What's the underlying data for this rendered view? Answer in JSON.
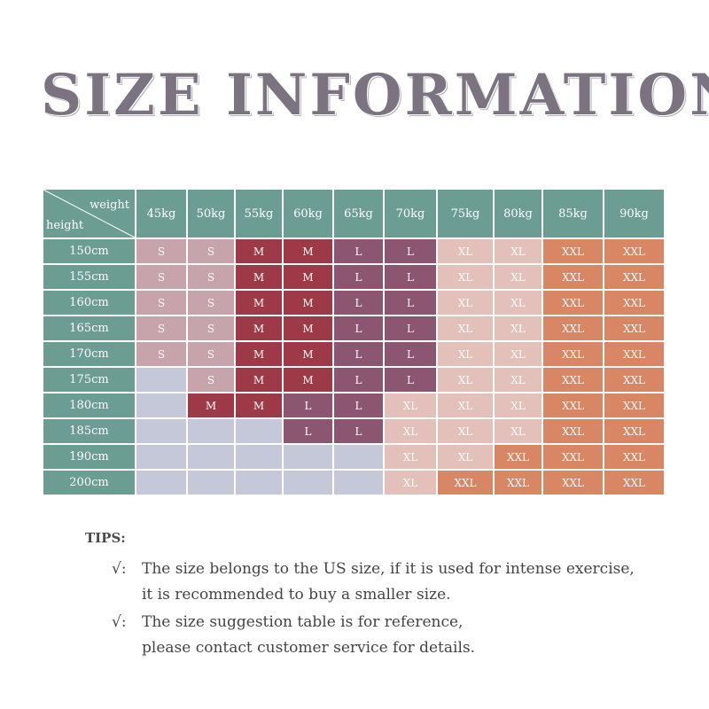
{
  "title": "SIZE INFORMATION",
  "table": {
    "corner_weight": "weight",
    "corner_height": "height",
    "weights": [
      "45kg",
      "50kg",
      "55kg",
      "60kg",
      "65kg",
      "70kg",
      "75kg",
      "80kg",
      "85kg",
      "90kg"
    ],
    "rows": [
      {
        "height": "150cm",
        "sizes": [
          "S",
          "S",
          "M",
          "M",
          "L",
          "L",
          "XL",
          "XL",
          "XXL",
          "XXL"
        ]
      },
      {
        "height": "155cm",
        "sizes": [
          "S",
          "S",
          "M",
          "M",
          "L",
          "L",
          "XL",
          "XL",
          "XXL",
          "XXL"
        ]
      },
      {
        "height": "160cm",
        "sizes": [
          "S",
          "S",
          "M",
          "M",
          "L",
          "L",
          "XL",
          "XL",
          "XXL",
          "XXL"
        ]
      },
      {
        "height": "165cm",
        "sizes": [
          "S",
          "S",
          "M",
          "M",
          "L",
          "L",
          "XL",
          "XL",
          "XXL",
          "XXL"
        ]
      },
      {
        "height": "170cm",
        "sizes": [
          "S",
          "S",
          "M",
          "M",
          "L",
          "L",
          "XL",
          "XL",
          "XXL",
          "XXL"
        ]
      },
      {
        "height": "175cm",
        "sizes": [
          "",
          "S",
          "M",
          "M",
          "L",
          "L",
          "XL",
          "XL",
          "XXL",
          "XXL"
        ]
      },
      {
        "height": "180cm",
        "sizes": [
          "",
          "M",
          "M",
          "L",
          "L",
          "XL",
          "XL",
          "XL",
          "XXL",
          "XXL"
        ]
      },
      {
        "height": "185cm",
        "sizes": [
          "",
          "",
          "",
          "L",
          "L",
          "XL",
          "XL",
          "XL",
          "XXL",
          "XXL"
        ]
      },
      {
        "height": "190cm",
        "sizes": [
          "",
          "",
          "",
          "",
          "",
          "XL",
          "XL",
          "XXL",
          "XXL",
          "XXL"
        ]
      },
      {
        "height": "200cm",
        "sizes": [
          "",
          "",
          "",
          "",
          "",
          "XL",
          "XXL",
          "XXL",
          "XXL",
          "XXL"
        ]
      }
    ]
  },
  "colors": {
    "header": "#6b9d92",
    "S": "#c7a3ab",
    "M": "#9e3a47",
    "L": "#8c5671",
    "XL": "#e3c0b9",
    "XXL": "#d98664",
    "empty": "#c4c8d9"
  },
  "tips": {
    "label": "TIPS:",
    "mark": "√:",
    "items": [
      {
        "line1": "The size belongs to the US size, if it is used for intense exercise,",
        "line2": "it is recommended to buy a smaller size."
      },
      {
        "line1": "The size suggestion table is for reference,",
        "line2": "please contact customer service for details."
      }
    ]
  }
}
